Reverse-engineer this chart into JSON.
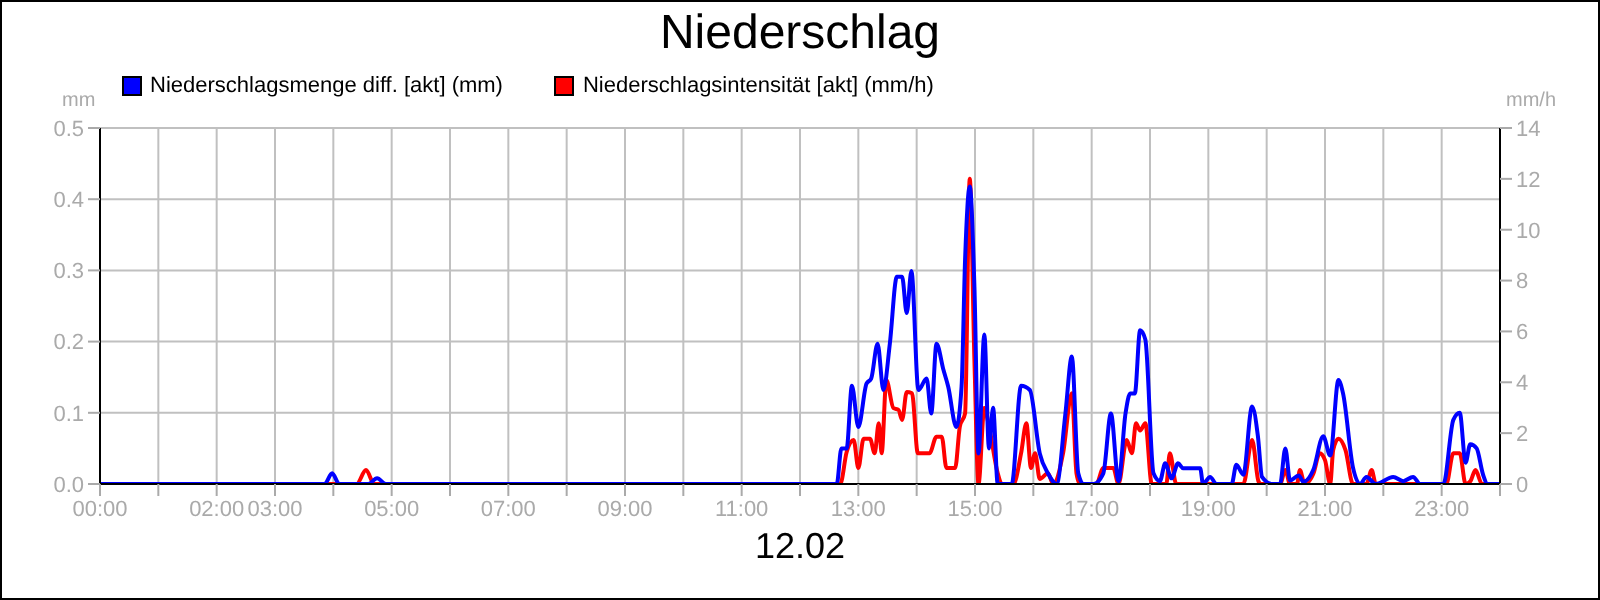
{
  "chart_data": {
    "type": "line",
    "title": "Niederschlag",
    "xlabel": "12.02",
    "ylabel": "mm",
    "y2label": "mm/h",
    "legend": "top left",
    "grid": true,
    "marker": "none",
    "line_style": "solid",
    "xlim": [
      0,
      24
    ],
    "xticks": [
      {
        "value": 0,
        "label": "00:00"
      },
      {
        "value": 1,
        "label": null
      },
      {
        "value": 2,
        "label": "02:00"
      },
      {
        "value": 3,
        "label": "03:00"
      },
      {
        "value": 4,
        "label": null
      },
      {
        "value": 5,
        "label": "05:00"
      },
      {
        "value": 6,
        "label": null
      },
      {
        "value": 7,
        "label": "07:00"
      },
      {
        "value": 8,
        "label": null
      },
      {
        "value": 9,
        "label": "09:00"
      },
      {
        "value": 10,
        "label": null
      },
      {
        "value": 11,
        "label": "11:00"
      },
      {
        "value": 12,
        "label": null
      },
      {
        "value": 13,
        "label": "13:00"
      },
      {
        "value": 14,
        "label": null
      },
      {
        "value": 15,
        "label": "15:00"
      },
      {
        "value": 16,
        "label": null
      },
      {
        "value": 17,
        "label": "17:00"
      },
      {
        "value": 18,
        "label": null
      },
      {
        "value": 19,
        "label": "19:00"
      },
      {
        "value": 20,
        "label": null
      },
      {
        "value": 21,
        "label": "21:00"
      },
      {
        "value": 22,
        "label": null
      },
      {
        "value": 23,
        "label": "23:00"
      },
      {
        "value": 24,
        "label": null
      }
    ],
    "ylim": [
      0,
      0.5
    ],
    "yticks": [
      {
        "value": 0,
        "label": "0.0"
      },
      {
        "value": 0.1,
        "label": "0.1"
      },
      {
        "value": 0.2,
        "label": "0.2"
      },
      {
        "value": 0.3,
        "label": "0.3"
      },
      {
        "value": 0.4,
        "label": "0.4"
      },
      {
        "value": 0.5,
        "label": "0.5"
      }
    ],
    "y2lim": [
      0,
      14
    ],
    "y2ticks": [
      0,
      2,
      4,
      6,
      8,
      10,
      12,
      14
    ],
    "series": [
      {
        "name": "Niederschlagsmenge diff. [akt] (mm)",
        "color": "#0000ff",
        "x": [
          0,
          3.85,
          3.98,
          4.1,
          4.6,
          4.75,
          4.9,
          12.63,
          12.71,
          12.8,
          12.89,
          13.0,
          13.14,
          13.22,
          13.33,
          13.43,
          13.54,
          13.66,
          13.75,
          13.83,
          13.91,
          14.03,
          14.17,
          14.25,
          14.34,
          14.46,
          14.54,
          14.68,
          14.77,
          14.83,
          14.91,
          14.99,
          15.06,
          15.16,
          15.24,
          15.31,
          15.39,
          15.63,
          15.79,
          15.94,
          16.11,
          16.25,
          16.4,
          16.55,
          16.66,
          16.77,
          16.86,
          17.03,
          17.2,
          17.33,
          17.46,
          17.58,
          17.66,
          17.74,
          17.83,
          17.92,
          18.06,
          18.17,
          18.26,
          18.37,
          18.48,
          18.57,
          18.86,
          18.91,
          19.03,
          19.14,
          19.4,
          19.48,
          19.6,
          19.75,
          19.85,
          19.92,
          20.09,
          20.23,
          20.32,
          20.4,
          20.55,
          20.63,
          20.8,
          20.97,
          21.09,
          21.23,
          21.31,
          21.48,
          21.6,
          21.71,
          21.87,
          22.17,
          22.34,
          22.51,
          22.63,
          23.03,
          23.2,
          23.31,
          23.41,
          23.49,
          23.6,
          23.71,
          23.79,
          24
        ],
        "values": [
          0,
          0,
          0.015,
          0,
          0,
          0.008,
          0,
          0,
          0.05,
          0.05,
          0.138,
          0.08,
          0.141,
          0.148,
          0.197,
          0.132,
          0.197,
          0.291,
          0.291,
          0.24,
          0.299,
          0.132,
          0.148,
          0.099,
          0.197,
          0.16,
          0.137,
          0.08,
          0.137,
          0.315,
          0.418,
          0.277,
          0.043,
          0.21,
          0.05,
          0.107,
          0,
          0,
          0.138,
          0.132,
          0.043,
          0.015,
          0,
          0.099,
          0.179,
          0.015,
          0,
          0,
          0.015,
          0.099,
          0.004,
          0.099,
          0.127,
          0.127,
          0.216,
          0.203,
          0.015,
          0.004,
          0.029,
          0.008,
          0.029,
          0.022,
          0.022,
          0,
          0.01,
          0,
          0,
          0.027,
          0.013,
          0.109,
          0.067,
          0.01,
          0,
          0,
          0.05,
          0.005,
          0.012,
          0.003,
          0.02,
          0.067,
          0.04,
          0.146,
          0.127,
          0.023,
          0,
          0.01,
          0,
          0.01,
          0.004,
          0.01,
          0,
          0,
          0.09,
          0.1,
          0.03,
          0.056,
          0.05,
          0.013,
          0,
          0
        ]
      },
      {
        "name": "Niederschlagsintensität [akt] (mm/h)",
        "color": "#ff0000",
        "axis": "y2",
        "x": [
          0,
          4.4,
          4.56,
          4.7,
          12.69,
          12.8,
          12.92,
          13.0,
          13.09,
          13.2,
          13.28,
          13.35,
          13.4,
          13.48,
          13.6,
          13.69,
          13.75,
          13.83,
          13.92,
          14.02,
          14.22,
          14.34,
          14.43,
          14.51,
          14.66,
          14.74,
          14.83,
          14.91,
          14.99,
          15.06,
          15.16,
          15.24,
          15.39,
          15.46,
          15.66,
          15.79,
          15.88,
          15.96,
          16.03,
          16.11,
          16.25,
          16.34,
          16.51,
          16.66,
          16.74,
          16.8,
          17.08,
          17.2,
          17.37,
          17.46,
          17.6,
          17.69,
          17.76,
          17.83,
          17.92,
          18.03,
          18.28,
          18.34,
          18.45,
          19.6,
          19.75,
          19.86,
          19.9,
          20.23,
          20.32,
          20.4,
          20.52,
          20.57,
          20.65,
          20.8,
          20.91,
          21.0,
          21.09,
          21.14,
          21.23,
          21.35,
          21.48,
          21.71,
          21.8,
          21.87,
          23.08,
          23.2,
          23.31,
          23.41,
          23.49,
          23.58,
          23.69,
          24
        ],
        "values": [
          0,
          0,
          0.55,
          0,
          0,
          1.26,
          1.73,
          0.63,
          1.78,
          1.78,
          1.21,
          2.39,
          1.21,
          4.09,
          2.99,
          2.91,
          2.52,
          3.62,
          3.57,
          1.21,
          1.21,
          1.86,
          1.86,
          0.63,
          0.63,
          2.26,
          2.78,
          12.0,
          4.88,
          0,
          2.99,
          2.26,
          0.42,
          0,
          0,
          1.21,
          2.39,
          0.63,
          1.21,
          0.2,
          0.42,
          0,
          1.21,
          3.57,
          0.42,
          0,
          0,
          0.63,
          0.63,
          0,
          1.73,
          1.21,
          2.39,
          2.1,
          2.39,
          0,
          0,
          1.21,
          0,
          0,
          1.73,
          0.1,
          0,
          0,
          0.55,
          0,
          0,
          0.55,
          0,
          0.4,
          1.21,
          0.94,
          0,
          1.34,
          1.78,
          1.34,
          0,
          0,
          0.55,
          0,
          0,
          1.21,
          1.21,
          0,
          0.1,
          0.55,
          0,
          0
        ]
      }
    ]
  }
}
